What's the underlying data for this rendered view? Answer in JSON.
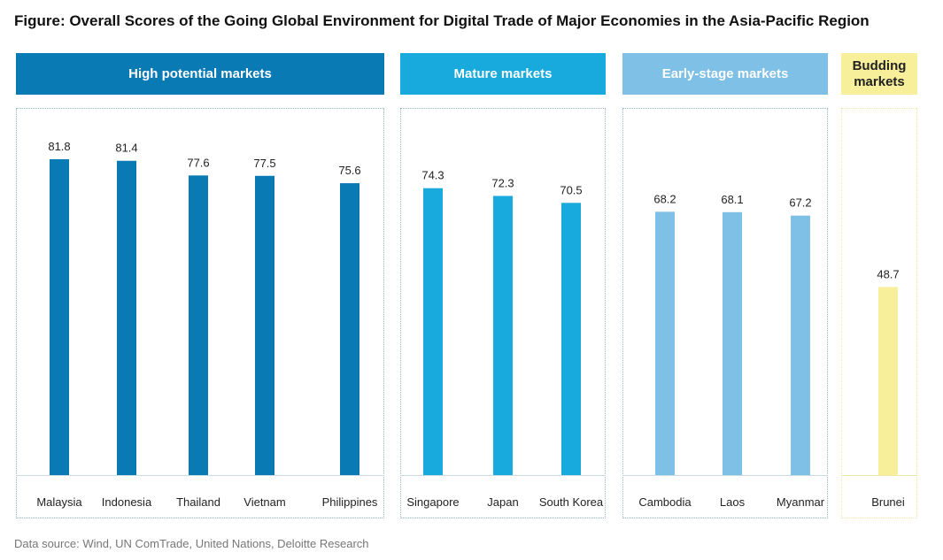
{
  "title": "Figure: Overall Scores of the Going Global Environment for Digital Trade of Major Economies in the Asia-Pacific Region",
  "footer": "Data source: Wind, UN ComTrade, United Nations, Deloitte Research",
  "colors": {
    "high_potential": "#0a7ab5",
    "mature": "#19aadd",
    "early_stage": "#7ec0e6",
    "budding": "#f7ef9a",
    "budding_text": "#222222",
    "header_text": "#ffffff"
  },
  "groups": [
    {
      "label": "High potential markets",
      "color_key": "high_potential"
    },
    {
      "label": "Mature markets",
      "color_key": "mature"
    },
    {
      "label": "Early-stage markets",
      "color_key": "early_stage"
    },
    {
      "label": "Budding\nmarkets",
      "color_key": "budding"
    }
  ],
  "chart_data": {
    "type": "bar",
    "title": "Figure: Overall Scores of the Going Global Environment for Digital Trade of Major Economies in the Asia-Pacific Region",
    "categories": [
      "Malaysia",
      "Indonesia",
      "Thailand",
      "Vietnam",
      "Philippines",
      "Singapore",
      "Japan",
      "South Korea",
      "Cambodia",
      "Laos",
      "Myanmar",
      "Brunei"
    ],
    "values": [
      81.8,
      81.4,
      77.6,
      77.5,
      75.6,
      74.3,
      72.3,
      70.5,
      68.2,
      68.1,
      67.2,
      48.7
    ],
    "category_group": [
      0,
      0,
      0,
      0,
      0,
      1,
      1,
      1,
      2,
      2,
      2,
      3
    ],
    "data_labels": [
      "81.8",
      "81.4",
      "77.6",
      "77.5",
      "75.6",
      "74.3",
      "72.3",
      "70.5",
      "68.2",
      "68.1",
      "67.2",
      "48.7"
    ],
    "xlabel": "",
    "ylabel": "",
    "ylim": [
      0,
      100
    ],
    "grid": false,
    "legend": "group headers above bars"
  }
}
